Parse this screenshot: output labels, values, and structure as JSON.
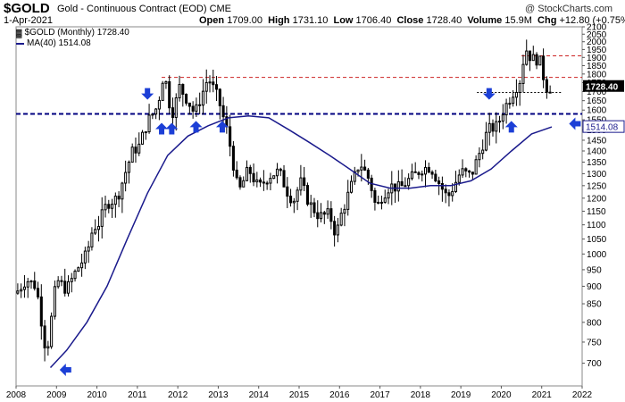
{
  "header": {
    "symbol": "$GOLD",
    "subtitle": "Gold - Continuous Contract (EOD)  CME",
    "date": "1-Apr-2021",
    "open_label": "Open",
    "open": "1709.00",
    "high_label": "High",
    "high": "1731.10",
    "low_label": "Low",
    "low": "1706.40",
    "close_label": "Close",
    "close": "1728.40",
    "volume_label": "Volume",
    "volume": "15.9M",
    "chg_label": "Chg",
    "chg": "+12.80 (+0.75%)",
    "credit": "@ StockCharts.com"
  },
  "legend": {
    "price_label": "$GOLD (Monthly) 1728.40",
    "ma_label": "MA(40) 1514.08"
  },
  "colors": {
    "candle": "#000000",
    "ma_line": "#1a1a8c",
    "support_line": "#000080",
    "resistance_line": "#cc2222",
    "arrow": "#1c3fd6",
    "last_price_tag": "#000000",
    "ma_tag": "#1a1a8c"
  },
  "chart_data": {
    "type": "candlestick",
    "interval": "monthly",
    "ylim": [
      650,
      2100
    ],
    "xlim": [
      2008.0,
      2022.0
    ],
    "x_ticks": [
      "2008",
      "2009",
      "2010",
      "2011",
      "2012",
      "2013",
      "2014",
      "2015",
      "2016",
      "2017",
      "2018",
      "2019",
      "2020",
      "2021",
      "2022"
    ],
    "y_ticks": [
      700,
      750,
      800,
      850,
      900,
      950,
      1000,
      1050,
      1100,
      1150,
      1200,
      1250,
      1300,
      1350,
      1400,
      1450,
      1500,
      1550,
      1600,
      1650,
      1700,
      1750,
      1800,
      1850,
      1900,
      1950,
      2000,
      2050,
      2100
    ],
    "y_scale": "log",
    "grid": false,
    "last_price": 1728.4,
    "ma_value": 1514.08,
    "close_path": [
      [
        2008.0,
        880
      ],
      [
        2008.25,
        920
      ],
      [
        2008.5,
        900
      ],
      [
        2008.75,
        720
      ],
      [
        2008.85,
        790
      ],
      [
        2009.0,
        920
      ],
      [
        2009.25,
        890
      ],
      [
        2009.5,
        950
      ],
      [
        2009.75,
        1000
      ],
      [
        2009.92,
        1100
      ],
      [
        2010.0,
        1090
      ],
      [
        2010.25,
        1180
      ],
      [
        2010.5,
        1200
      ],
      [
        2010.75,
        1330
      ],
      [
        2010.92,
        1420
      ],
      [
        2011.0,
        1400
      ],
      [
        2011.25,
        1540
      ],
      [
        2011.5,
        1620
      ],
      [
        2011.67,
        1830
      ],
      [
        2011.75,
        1660
      ],
      [
        2011.92,
        1570
      ],
      [
        2012.0,
        1740
      ],
      [
        2012.25,
        1650
      ],
      [
        2012.42,
        1580
      ],
      [
        2012.75,
        1780
      ],
      [
        2013.0,
        1660
      ],
      [
        2013.25,
        1470
      ],
      [
        2013.5,
        1220
      ],
      [
        2013.75,
        1320
      ],
      [
        2014.0,
        1240
      ],
      [
        2014.25,
        1290
      ],
      [
        2014.5,
        1310
      ],
      [
        2014.75,
        1210
      ],
      [
        2014.92,
        1190
      ],
      [
        2015.0,
        1280
      ],
      [
        2015.25,
        1180
      ],
      [
        2015.5,
        1130
      ],
      [
        2015.75,
        1140
      ],
      [
        2015.92,
        1060
      ],
      [
        2016.0,
        1120
      ],
      [
        2016.25,
        1230
      ],
      [
        2016.5,
        1350
      ],
      [
        2016.75,
        1270
      ],
      [
        2016.92,
        1150
      ],
      [
        2017.0,
        1200
      ],
      [
        2017.25,
        1250
      ],
      [
        2017.5,
        1240
      ],
      [
        2017.75,
        1280
      ],
      [
        2017.92,
        1300
      ],
      [
        2018.0,
        1320
      ],
      [
        2018.25,
        1330
      ],
      [
        2018.5,
        1250
      ],
      [
        2018.67,
        1200
      ],
      [
        2018.92,
        1280
      ],
      [
        2019.0,
        1310
      ],
      [
        2019.25,
        1290
      ],
      [
        2019.5,
        1410
      ],
      [
        2019.67,
        1500
      ],
      [
        2019.92,
        1520
      ],
      [
        2020.0,
        1580
      ],
      [
        2020.25,
        1680
      ],
      [
        2020.5,
        1780
      ],
      [
        2020.58,
        1970
      ],
      [
        2020.75,
        1890
      ],
      [
        2020.92,
        1890
      ],
      [
        2021.0,
        1850
      ],
      [
        2021.08,
        1730
      ],
      [
        2021.17,
        1715
      ],
      [
        2021.25,
        1728.4
      ]
    ],
    "ma_path": [
      [
        2008.85,
        690
      ],
      [
        2009.25,
        730
      ],
      [
        2009.75,
        800
      ],
      [
        2010.25,
        900
      ],
      [
        2010.75,
        1050
      ],
      [
        2011.25,
        1220
      ],
      [
        2011.75,
        1380
      ],
      [
        2012.25,
        1470
      ],
      [
        2012.75,
        1520
      ],
      [
        2013.25,
        1560
      ],
      [
        2013.75,
        1570
      ],
      [
        2014.25,
        1560
      ],
      [
        2014.75,
        1500
      ],
      [
        2015.25,
        1440
      ],
      [
        2015.75,
        1380
      ],
      [
        2016.25,
        1320
      ],
      [
        2016.75,
        1260
      ],
      [
        2017.25,
        1240
      ],
      [
        2017.75,
        1240
      ],
      [
        2018.25,
        1250
      ],
      [
        2018.75,
        1250
      ],
      [
        2019.25,
        1270
      ],
      [
        2019.75,
        1320
      ],
      [
        2020.25,
        1400
      ],
      [
        2020.75,
        1480
      ],
      [
        2021.25,
        1514.08
      ]
    ],
    "horizontal_lines": [
      {
        "price": 1580,
        "style": "dashed",
        "role": "support"
      },
      {
        "price": 1780,
        "style": "dashed",
        "role": "resistance"
      },
      {
        "price": 1910,
        "style": "dashed",
        "role": "resistance"
      },
      {
        "price": 1695,
        "style": "dotted",
        "role": "level"
      }
    ],
    "annotations": [
      {
        "type": "arrow",
        "direction": "left",
        "x": 2009.1,
        "price": 685
      },
      {
        "type": "arrow",
        "direction": "down",
        "x": 2011.25,
        "price": 1660
      },
      {
        "type": "arrow",
        "direction": "up",
        "x": 2011.6,
        "price": 1530
      },
      {
        "type": "arrow",
        "direction": "up",
        "x": 2011.85,
        "price": 1530
      },
      {
        "type": "arrow",
        "direction": "up",
        "x": 2012.45,
        "price": 1540
      },
      {
        "type": "arrow",
        "direction": "up",
        "x": 2013.1,
        "price": 1540
      },
      {
        "type": "arrow",
        "direction": "down",
        "x": 2019.7,
        "price": 1660
      },
      {
        "type": "arrow",
        "direction": "up",
        "x": 2020.25,
        "price": 1540
      },
      {
        "type": "arrow",
        "direction": "left",
        "x": 2021.7,
        "price": 1530
      }
    ]
  }
}
